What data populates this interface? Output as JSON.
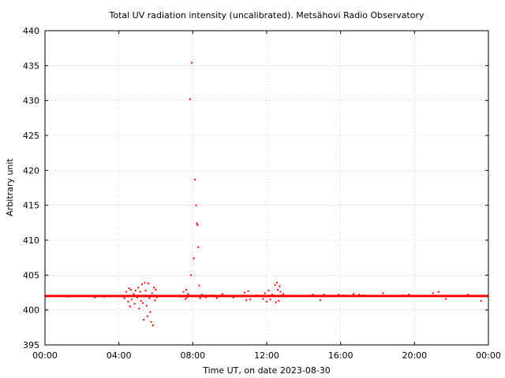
{
  "chart_data": {
    "type": "scatter",
    "title": "Total UV radiation intensity (uncalibrated). Metsähovi Radio Observatory",
    "xlabel": "Time UT, on date 2023-08-30",
    "ylabel": "Arbitrary unit",
    "xlim_hours": [
      0,
      24
    ],
    "ylim": [
      395,
      440
    ],
    "x_tick_labels": [
      "00:00",
      "04:00",
      "08:00",
      "12:00",
      "16:00",
      "20:00",
      "00:00"
    ],
    "y_tick_labels": [
      "395",
      "400",
      "405",
      "410",
      "415",
      "420",
      "425",
      "430",
      "435",
      "440"
    ],
    "grid": true,
    "series_color": "#ff0000",
    "baseline": {
      "value": 402.0,
      "from_hour": 0,
      "to_hour": 24
    },
    "points": [
      {
        "x": 1.3,
        "y": 401.9
      },
      {
        "x": 2.7,
        "y": 401.8
      },
      {
        "x": 3.2,
        "y": 401.9
      },
      {
        "x": 4.3,
        "y": 401.7
      },
      {
        "x": 4.4,
        "y": 402.6
      },
      {
        "x": 4.5,
        "y": 401.2
      },
      {
        "x": 4.55,
        "y": 403.1
      },
      {
        "x": 4.6,
        "y": 400.5
      },
      {
        "x": 4.65,
        "y": 402.9
      },
      {
        "x": 4.7,
        "y": 401.5
      },
      {
        "x": 4.8,
        "y": 402.3
      },
      {
        "x": 4.85,
        "y": 400.9
      },
      {
        "x": 4.9,
        "y": 402.8
      },
      {
        "x": 5.0,
        "y": 401.8
      },
      {
        "x": 5.05,
        "y": 403.2
      },
      {
        "x": 5.1,
        "y": 400.2
      },
      {
        "x": 5.15,
        "y": 402.6
      },
      {
        "x": 5.2,
        "y": 401.3
      },
      {
        "x": 5.25,
        "y": 403.7
      },
      {
        "x": 5.3,
        "y": 401.0
      },
      {
        "x": 5.35,
        "y": 398.6
      },
      {
        "x": 5.4,
        "y": 403.9
      },
      {
        "x": 5.45,
        "y": 402.8
      },
      {
        "x": 5.5,
        "y": 400.6
      },
      {
        "x": 5.55,
        "y": 399.1
      },
      {
        "x": 5.6,
        "y": 403.8
      },
      {
        "x": 5.65,
        "y": 401.7
      },
      {
        "x": 5.7,
        "y": 399.7
      },
      {
        "x": 5.75,
        "y": 398.3
      },
      {
        "x": 5.8,
        "y": 402.4
      },
      {
        "x": 5.85,
        "y": 397.8
      },
      {
        "x": 5.9,
        "y": 403.2
      },
      {
        "x": 5.95,
        "y": 401.4
      },
      {
        "x": 6.0,
        "y": 402.9
      },
      {
        "x": 6.05,
        "y": 401.8
      },
      {
        "x": 7.4,
        "y": 401.9
      },
      {
        "x": 7.5,
        "y": 402.6
      },
      {
        "x": 7.6,
        "y": 401.6
      },
      {
        "x": 7.65,
        "y": 402.9
      },
      {
        "x": 7.7,
        "y": 401.8
      },
      {
        "x": 7.75,
        "y": 402.3
      },
      {
        "x": 7.85,
        "y": 430.2
      },
      {
        "x": 7.9,
        "y": 405.0
      },
      {
        "x": 7.95,
        "y": 435.4
      },
      {
        "x": 8.05,
        "y": 407.4
      },
      {
        "x": 8.12,
        "y": 418.7
      },
      {
        "x": 8.18,
        "y": 415.0
      },
      {
        "x": 8.22,
        "y": 412.4
      },
      {
        "x": 8.26,
        "y": 412.2
      },
      {
        "x": 8.3,
        "y": 409.0
      },
      {
        "x": 8.35,
        "y": 403.5
      },
      {
        "x": 8.4,
        "y": 401.7
      },
      {
        "x": 8.5,
        "y": 402.2
      },
      {
        "x": 8.7,
        "y": 401.8
      },
      {
        "x": 9.0,
        "y": 402.1
      },
      {
        "x": 9.3,
        "y": 401.7
      },
      {
        "x": 9.6,
        "y": 402.3
      },
      {
        "x": 10.2,
        "y": 401.8
      },
      {
        "x": 10.8,
        "y": 402.5
      },
      {
        "x": 10.9,
        "y": 401.4
      },
      {
        "x": 11.0,
        "y": 402.7
      },
      {
        "x": 11.1,
        "y": 401.5
      },
      {
        "x": 11.5,
        "y": 402.1
      },
      {
        "x": 11.8,
        "y": 401.6
      },
      {
        "x": 11.9,
        "y": 402.4
      },
      {
        "x": 12.0,
        "y": 401.2
      },
      {
        "x": 12.1,
        "y": 402.8
      },
      {
        "x": 12.2,
        "y": 401.5
      },
      {
        "x": 12.3,
        "y": 402.2
      },
      {
        "x": 12.45,
        "y": 403.6
      },
      {
        "x": 12.5,
        "y": 401.1
      },
      {
        "x": 12.55,
        "y": 403.9
      },
      {
        "x": 12.6,
        "y": 402.9
      },
      {
        "x": 12.65,
        "y": 401.3
      },
      {
        "x": 12.7,
        "y": 403.4
      },
      {
        "x": 12.75,
        "y": 402.6
      },
      {
        "x": 12.8,
        "y": 402.1
      },
      {
        "x": 12.9,
        "y": 402.3
      },
      {
        "x": 14.5,
        "y": 402.2
      },
      {
        "x": 14.9,
        "y": 401.4
      },
      {
        "x": 15.1,
        "y": 402.2
      },
      {
        "x": 15.9,
        "y": 402.2
      },
      {
        "x": 16.1,
        "y": 402.1
      },
      {
        "x": 16.7,
        "y": 402.3
      },
      {
        "x": 17.0,
        "y": 402.2
      },
      {
        "x": 17.2,
        "y": 402.1
      },
      {
        "x": 18.3,
        "y": 402.4
      },
      {
        "x": 19.4,
        "y": 402.1
      },
      {
        "x": 19.7,
        "y": 402.2
      },
      {
        "x": 21.0,
        "y": 402.4
      },
      {
        "x": 21.3,
        "y": 402.6
      },
      {
        "x": 21.7,
        "y": 401.6
      },
      {
        "x": 22.9,
        "y": 402.2
      },
      {
        "x": 23.6,
        "y": 401.3
      }
    ]
  }
}
